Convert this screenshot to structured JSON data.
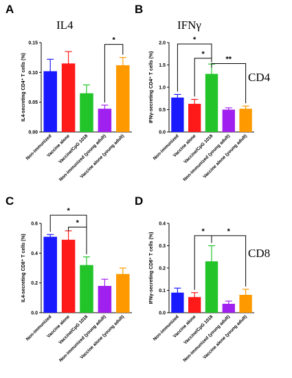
{
  "colors": {
    "Non-immunized": "#1a1aff",
    "Vaccine alone": "#ff1a1a",
    "Vaccine/CpG 1018": "#22c42a",
    "Non-immunized (young adult)": "#a020f0",
    "Vaccine alone (young adult)": "#ff9900"
  },
  "row_labels": {
    "cd4": "CD4",
    "cd8": "CD8"
  },
  "chart_data": [
    {
      "letter": "A",
      "title": "IL4",
      "type": "bar",
      "ylabel": "IL4-secreting CD4⁺ T cells (%)",
      "ylim": [
        0,
        0.15
      ],
      "ticks": [
        "0.00",
        "0.05",
        "0.10",
        "0.15"
      ],
      "categories": [
        "Non-immunized",
        "Vaccine alone",
        "Vaccine/CpG 1018",
        "Non-immunized (young adult)",
        "Vaccine alone (young adult)"
      ],
      "values": [
        0.102,
        0.115,
        0.065,
        0.039,
        0.112
      ],
      "errors": [
        0.02,
        0.02,
        0.014,
        0.006,
        0.013
      ],
      "significance": [
        {
          "from": 3,
          "to": 4,
          "label": "*",
          "y": 0.147
        }
      ]
    },
    {
      "letter": "B",
      "title": "IFNγ",
      "type": "bar",
      "ylabel": "IFNγ-secreting CD4⁺ T cells (%)",
      "ylim": [
        0,
        2.0
      ],
      "ticks": [
        "0.0",
        "0.5",
        "1.0",
        "1.5",
        "2.0"
      ],
      "categories": [
        "Non-immunized",
        "Vaccine alone",
        "Vaccine/CpG 1018",
        "Non-immunized (young adult)",
        "Vaccine alone (young adult)"
      ],
      "values": [
        0.77,
        0.63,
        1.3,
        0.5,
        0.52
      ],
      "errors": [
        0.07,
        0.1,
        0.22,
        0.04,
        0.06
      ],
      "significance": [
        {
          "from": 0,
          "to": 2,
          "label": "*",
          "y": 1.97
        },
        {
          "from": 1,
          "to": 2,
          "label": "*",
          "y": 1.65
        },
        {
          "from": 2,
          "to": 4,
          "label": "**",
          "y": 1.53
        }
      ]
    },
    {
      "letter": "C",
      "title": "",
      "type": "bar",
      "ylabel": "IL4-secreting CD8⁺ T cells (%)",
      "ylim": [
        0,
        0.6
      ],
      "ticks": [
        "0.0",
        "0.2",
        "0.4",
        "0.6"
      ],
      "categories": [
        "Non-immunized",
        "Vaccine alone",
        "Vaccine/CpG 1018",
        "Non-immunized (young adult)",
        "Vaccine alone (young adult)"
      ],
      "values": [
        0.51,
        0.49,
        0.32,
        0.18,
        0.26
      ],
      "errors": [
        0.015,
        0.06,
        0.055,
        0.045,
        0.04
      ],
      "significance": [
        {
          "from": 0,
          "to": 2,
          "label": "*",
          "y": 0.655
        },
        {
          "from": 1,
          "to": 2,
          "label": "*",
          "y": 0.575
        }
      ]
    },
    {
      "letter": "D",
      "title": "",
      "type": "bar",
      "ylabel": "IFNγ-secreting CD8⁺ T cells (%)",
      "ylim": [
        0,
        0.4
      ],
      "ticks": [
        "0.0",
        "0.1",
        "0.2",
        "0.3",
        "0.4"
      ],
      "categories": [
        "Non-immunized",
        "Vaccine alone",
        "Vaccine/CpG 1018",
        "Non-immunized (young adult)",
        "Vaccine alone (young adult)"
      ],
      "values": [
        0.09,
        0.07,
        0.23,
        0.04,
        0.08
      ],
      "errors": [
        0.02,
        0.02,
        0.07,
        0.012,
        0.025
      ],
      "significance": [
        {
          "from": 1,
          "to": 2,
          "label": "*",
          "y": 0.345
        },
        {
          "from": 2,
          "to": 4,
          "label": "*",
          "y": 0.345
        }
      ]
    }
  ]
}
